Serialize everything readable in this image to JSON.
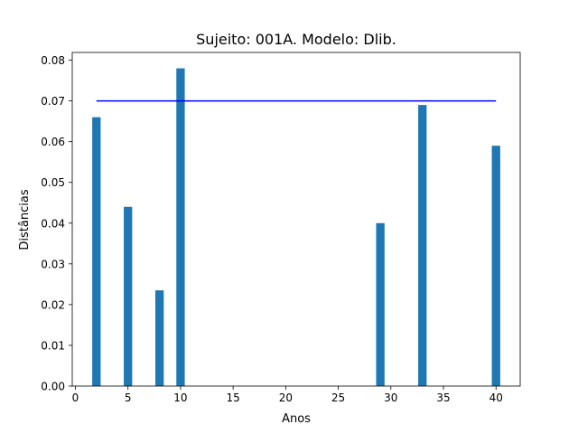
{
  "chart_data": {
    "type": "bar",
    "title": "Sujeito: 001A. Modelo: Dlib.",
    "xlabel": "Anos",
    "ylabel": "Distâncias",
    "xlim": [
      -0.3,
      42.3
    ],
    "ylim": [
      0,
      0.0819
    ],
    "xticks": [
      0,
      5,
      10,
      15,
      20,
      25,
      30,
      35,
      40
    ],
    "yticks": [
      0.0,
      0.01,
      0.02,
      0.03,
      0.04,
      0.05,
      0.06,
      0.07,
      0.08
    ],
    "ytick_labels": [
      "0.00",
      "0.01",
      "0.02",
      "0.03",
      "0.04",
      "0.05",
      "0.06",
      "0.07",
      "0.08"
    ],
    "bar_width": 0.8,
    "bar_color": "#1f77b4",
    "x": [
      2,
      5,
      8,
      10,
      29,
      33,
      40
    ],
    "values": [
      0.066,
      0.044,
      0.0235,
      0.078,
      0.04,
      0.069,
      0.059
    ],
    "threshold": {
      "value": 0.07,
      "x_range": [
        2,
        40
      ],
      "color": "#0000ff"
    },
    "grid": false,
    "legend": "none"
  }
}
